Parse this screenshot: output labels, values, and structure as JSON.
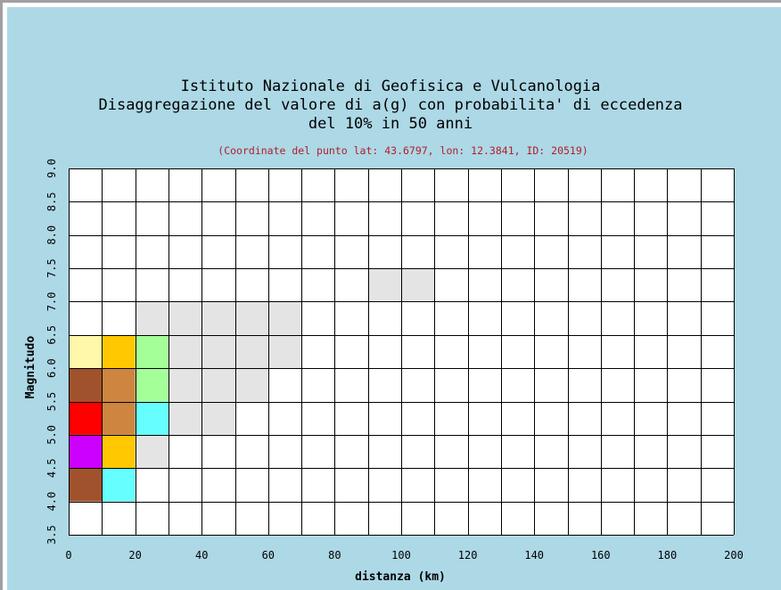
{
  "title_lines": [
    "Istituto Nazionale di Geofisica e Vulcanologia",
    "Disaggregazione del valore di a(g) con probabilita' di eccedenza",
    "del 10% in 50 anni"
  ],
  "subtitle": "(Coordinate del punto lat: 43.6797, lon: 12.3841, ID: 20519)",
  "colors": {
    "background": "#add8e6",
    "grid": "#000000",
    "subtitle": "#b0202a"
  },
  "chart_data": {
    "type": "heatmap",
    "xlabel": "distanza (km)",
    "ylabel": "Magnitudo",
    "xlim": [
      0,
      200
    ],
    "ylim": [
      3.5,
      9.0
    ],
    "x_ticks": [
      "0",
      "20",
      "40",
      "60",
      "80",
      "100",
      "120",
      "140",
      "160",
      "180",
      "200"
    ],
    "y_ticks": [
      "3.5",
      "4.0",
      "4.5",
      "5.0",
      "5.5",
      "6.0",
      "6.5",
      "7.0",
      "7.5",
      "8.0",
      "8.5",
      "9.0"
    ],
    "x_step": 10,
    "y_step": 0.5,
    "grid": true,
    "cells": [
      {
        "x0": 0,
        "y0": 4.0,
        "color": "#a0522d"
      },
      {
        "x0": 10,
        "y0": 4.0,
        "color": "#66ffff"
      },
      {
        "x0": 0,
        "y0": 4.5,
        "color": "#cc00ff"
      },
      {
        "x0": 10,
        "y0": 4.5,
        "color": "#ffc800"
      },
      {
        "x0": 20,
        "y0": 4.5,
        "color": "#e4e4e4"
      },
      {
        "x0": 0,
        "y0": 5.0,
        "color": "#ff0000"
      },
      {
        "x0": 10,
        "y0": 5.0,
        "color": "#cd853f"
      },
      {
        "x0": 20,
        "y0": 5.0,
        "color": "#66ffff"
      },
      {
        "x0": 30,
        "y0": 5.0,
        "color": "#e4e4e4"
      },
      {
        "x0": 40,
        "y0": 5.0,
        "color": "#e4e4e4"
      },
      {
        "x0": 0,
        "y0": 5.5,
        "color": "#a0522d"
      },
      {
        "x0": 10,
        "y0": 5.5,
        "color": "#cd853f"
      },
      {
        "x0": 20,
        "y0": 5.5,
        "color": "#a4ff99"
      },
      {
        "x0": 30,
        "y0": 5.5,
        "color": "#e4e4e4"
      },
      {
        "x0": 40,
        "y0": 5.5,
        "color": "#e4e4e4"
      },
      {
        "x0": 50,
        "y0": 5.5,
        "color": "#e4e4e4"
      },
      {
        "x0": 0,
        "y0": 6.0,
        "color": "#fff8a8"
      },
      {
        "x0": 10,
        "y0": 6.0,
        "color": "#ffc800"
      },
      {
        "x0": 20,
        "y0": 6.0,
        "color": "#a4ff99"
      },
      {
        "x0": 30,
        "y0": 6.0,
        "color": "#e4e4e4"
      },
      {
        "x0": 40,
        "y0": 6.0,
        "color": "#e4e4e4"
      },
      {
        "x0": 50,
        "y0": 6.0,
        "color": "#e4e4e4"
      },
      {
        "x0": 60,
        "y0": 6.0,
        "color": "#e4e4e4"
      },
      {
        "x0": 20,
        "y0": 6.5,
        "color": "#e4e4e4"
      },
      {
        "x0": 30,
        "y0": 6.5,
        "color": "#e4e4e4"
      },
      {
        "x0": 40,
        "y0": 6.5,
        "color": "#e4e4e4"
      },
      {
        "x0": 50,
        "y0": 6.5,
        "color": "#e4e4e4"
      },
      {
        "x0": 60,
        "y0": 6.5,
        "color": "#e4e4e4"
      },
      {
        "x0": 90,
        "y0": 7.0,
        "color": "#e4e4e4"
      },
      {
        "x0": 100,
        "y0": 7.0,
        "color": "#e4e4e4"
      }
    ]
  }
}
